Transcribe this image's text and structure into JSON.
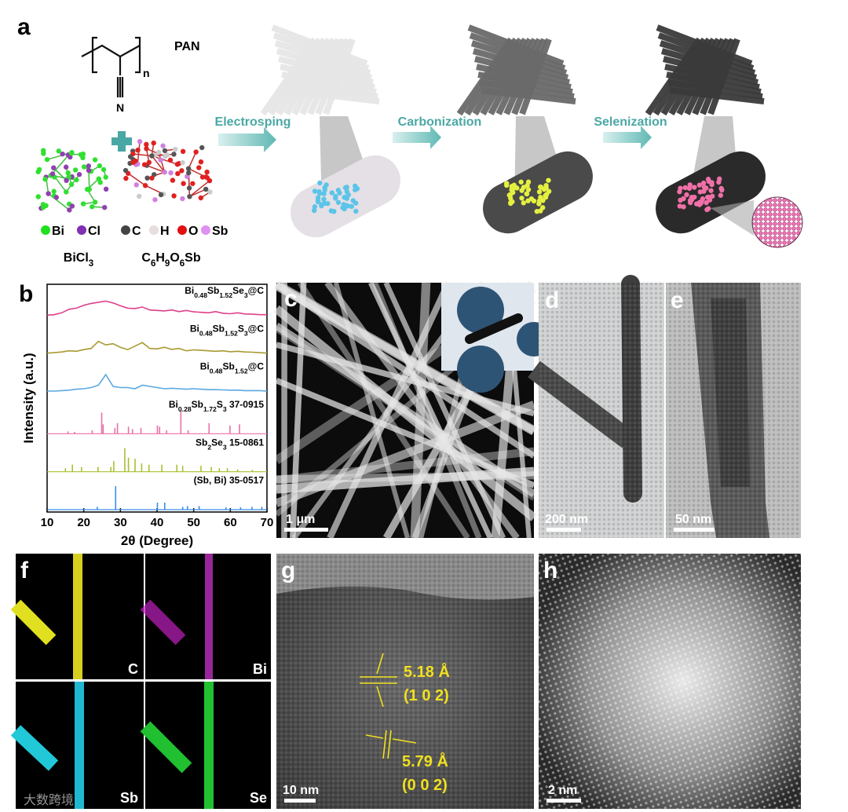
{
  "panels": {
    "a": {
      "label": "a",
      "polymer_label": "PAN",
      "repeat_n": "n",
      "nitrogen": "N",
      "legend_1": [
        "Bi",
        "Cl"
      ],
      "legend_2": [
        "C",
        "H",
        "O",
        "Sb"
      ],
      "precursor_1": "BiCl3",
      "precursor_2": "C6H9O6Sb",
      "steps": [
        "Electrosping",
        "Carbonization",
        "Selenization"
      ]
    },
    "b": {
      "label": "b"
    },
    "c": {
      "label": "c",
      "scale_bar": "1 μm"
    },
    "d": {
      "label": "d",
      "scale_bar": "200 nm"
    },
    "e": {
      "label": "e",
      "scale_bar": "50 nm"
    },
    "f": {
      "label": "f",
      "maps": [
        "C",
        "Bi",
        "Sb",
        "Se"
      ]
    },
    "g": {
      "label": "g",
      "spacing_1": "5.18 Å",
      "plane_1": "(1 0 2)",
      "spacing_2": "5.79 Å",
      "plane_2": "(0 0 2)",
      "scale_bar": "10 nm"
    },
    "h": {
      "label": "h",
      "scale_bar": "2 nm"
    },
    "watermark": "大数跨境"
  },
  "chart_data": {
    "type": "xrd",
    "xlabel": "2θ (Degree)",
    "ylabel": "Intensity (a.u.)",
    "xlim": [
      10,
      70
    ],
    "xticks": [
      10,
      20,
      30,
      40,
      50,
      60,
      70
    ],
    "ylim": [
      0,
      100
    ],
    "series": [
      {
        "name": "Bi0.48Sb1.52Se3@C",
        "color": "#e0408a",
        "kind": "line",
        "x": [
          10,
          12,
          14,
          16,
          18,
          20,
          22,
          24,
          26,
          28,
          30,
          32,
          34,
          36,
          38,
          40,
          42,
          44,
          46,
          48,
          50,
          52,
          54,
          56,
          58,
          60,
          62,
          64,
          66,
          68,
          70
        ],
        "values": [
          20,
          22,
          30,
          45,
          50,
          62,
          70,
          75,
          80,
          72,
          60,
          50,
          48,
          55,
          42,
          40,
          38,
          42,
          35,
          40,
          34,
          32,
          30,
          35,
          28,
          26,
          30,
          25,
          24,
          22,
          22
        ]
      },
      {
        "name": "Bi0.48Sb1.52S3@C",
        "color": "#a89a30",
        "kind": "line",
        "x": [
          10,
          12,
          14,
          16,
          18,
          20,
          22,
          24,
          26,
          28,
          30,
          32,
          34,
          36,
          38,
          40,
          42,
          44,
          46,
          48,
          50,
          52,
          54,
          56,
          58,
          60,
          62,
          64,
          66,
          68,
          70
        ],
        "values": [
          20,
          22,
          25,
          30,
          28,
          35,
          40,
          70,
          55,
          60,
          45,
          35,
          50,
          65,
          40,
          38,
          45,
          36,
          40,
          30,
          34,
          32,
          30,
          28,
          30,
          26,
          28,
          25,
          24,
          22,
          20
        ]
      },
      {
        "name": "Bi0.48Sb1.52@C",
        "color": "#5aa8e0",
        "kind": "line",
        "x": [
          10,
          12,
          14,
          16,
          18,
          20,
          22,
          24,
          26,
          28,
          30,
          32,
          34,
          36,
          38,
          40,
          42,
          44,
          46,
          48,
          50,
          52,
          54,
          56,
          58,
          60,
          62,
          64,
          66,
          68,
          70
        ],
        "values": [
          20,
          20,
          22,
          24,
          28,
          30,
          35,
          45,
          90,
          40,
          35,
          35,
          30,
          45,
          40,
          35,
          30,
          32,
          30,
          28,
          30,
          28,
          26,
          26,
          25,
          24,
          24,
          22,
          22,
          22,
          20
        ]
      },
      {
        "name": "Bi0.28Sb1.72S3 37-0915",
        "color": "#e870a8",
        "kind": "sticks",
        "x": [
          15.7,
          17.5,
          22.3,
          24.9,
          25.3,
          28.5,
          29.2,
          32.2,
          33.3,
          35.6,
          40.1,
          40.7,
          42.6,
          46.5,
          48.5,
          54.2,
          59.9,
          62.5
        ],
        "values": [
          10,
          8,
          15,
          90,
          40,
          25,
          45,
          30,
          20,
          25,
          35,
          30,
          15,
          100,
          15,
          45,
          35,
          40
        ]
      },
      {
        "name": "Sb2Se3 15-0861",
        "color": "#a8c030",
        "kind": "sticks",
        "x": [
          15.0,
          16.9,
          19.4,
          23.9,
          27.4,
          28.2,
          31.2,
          32.2,
          34.0,
          35.8,
          37.8,
          41.3,
          45.4,
          47.0,
          52.0,
          54.8,
          57.0,
          59.2,
          62.0,
          66.0
        ],
        "values": [
          15,
          30,
          20,
          20,
          20,
          45,
          100,
          60,
          55,
          35,
          30,
          30,
          30,
          25,
          25,
          20,
          15,
          15,
          10,
          8
        ]
      },
      {
        "name": "(Sb, Bi) 35-0517",
        "color": "#3a8ee0",
        "kind": "sticks",
        "x": [
          23.7,
          28.7,
          40.1,
          42.1,
          47.0,
          48.3,
          51.5,
          58.8,
          62.8,
          65.9,
          68.6
        ],
        "values": [
          12,
          100,
          30,
          30,
          12,
          15,
          15,
          10,
          10,
          12,
          12
        ]
      }
    ]
  }
}
